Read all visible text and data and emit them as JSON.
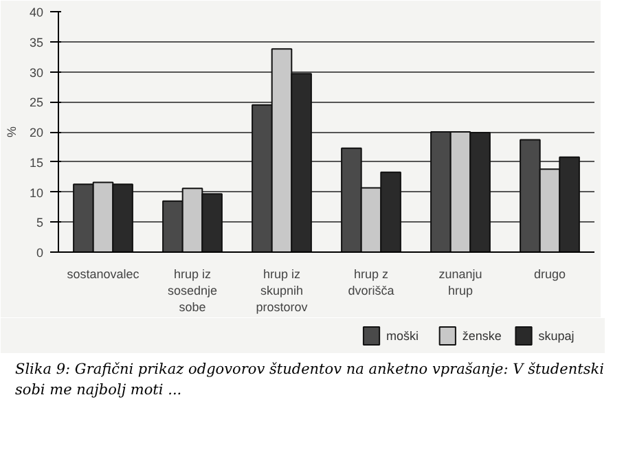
{
  "chart_data": {
    "type": "bar",
    "ylabel": "%",
    "categories": [
      "sostanovalec",
      "hrup iz sosednje sobe",
      "hrup iz skupnih prostorov",
      "hrup z dvorišča",
      "zunanju hrup",
      "drugo"
    ],
    "series": [
      {
        "name": "moški",
        "color": "#4a4a4a",
        "values": [
          11.3,
          8.5,
          24.5,
          17.3,
          20,
          18.7
        ]
      },
      {
        "name": "ženske",
        "color": "#c8c8c8",
        "values": [
          11.6,
          10.6,
          33.8,
          10.7,
          20,
          13.8
        ]
      },
      {
        "name": "skupaj",
        "color": "#2a2a2a",
        "values": [
          11.3,
          9.7,
          29.7,
          13.3,
          19.9,
          15.8
        ]
      }
    ],
    "ylim": [
      0,
      40
    ],
    "yticks": [
      0,
      5,
      10,
      15,
      20,
      25,
      30,
      35,
      40
    ],
    "grid": "y",
    "legend": "bottom right",
    "annotations": [
      "Slika 9: Grafični prikaz odgovorov študentov na anketno vprašanje: V študentski sobi me najbolj moti ..."
    ]
  }
}
